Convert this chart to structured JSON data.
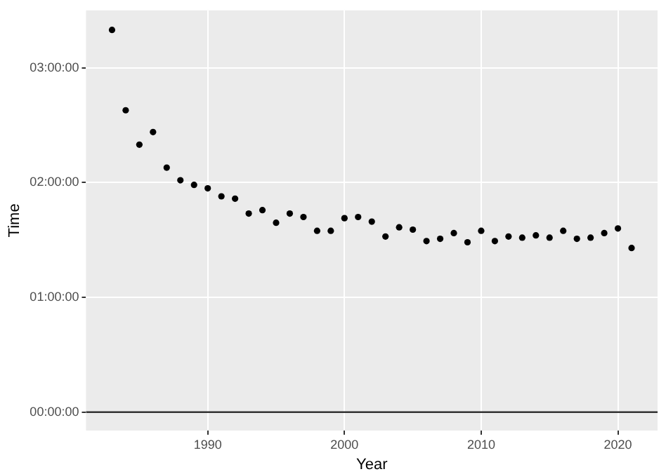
{
  "chart_data": {
    "type": "scatter",
    "xlabel": "Year",
    "ylabel": "Time",
    "x": [
      1983,
      1984,
      1985,
      1986,
      1987,
      1988,
      1989,
      1990,
      1991,
      1992,
      1993,
      1994,
      1995,
      1996,
      1997,
      1998,
      1999,
      2000,
      2001,
      2002,
      2003,
      2004,
      2005,
      2006,
      2007,
      2008,
      2009,
      2010,
      2011,
      2012,
      2013,
      2014,
      2015,
      2016,
      2017,
      2018,
      2019,
      2020,
      2021
    ],
    "values": [
      3.33,
      2.63,
      2.33,
      2.44,
      2.13,
      2.02,
      1.98,
      1.95,
      1.88,
      1.86,
      1.73,
      1.76,
      1.65,
      1.73,
      1.7,
      1.58,
      1.58,
      1.69,
      1.7,
      1.66,
      1.53,
      1.61,
      1.59,
      1.49,
      1.51,
      1.56,
      1.48,
      1.58,
      1.49,
      1.53,
      1.52,
      1.54,
      1.52,
      1.58,
      1.51,
      1.52,
      1.56,
      1.6,
      1.43
    ],
    "color": "#000000",
    "marker": "circle",
    "xlim": [
      1981.1,
      2022.9
    ],
    "xticks": [
      1990,
      2000,
      2010,
      2020
    ],
    "ylim": [
      -0.16,
      3.5
    ],
    "yticks": [
      {
        "value": 0,
        "label": "00:00:00"
      },
      {
        "value": 1,
        "label": "01:00:00"
      },
      {
        "value": 2,
        "label": "02:00:00"
      },
      {
        "value": 3,
        "label": "03:00:00"
      }
    ],
    "ref_lines": [
      {
        "axis": "y",
        "value": 0,
        "color": "#333333"
      }
    ],
    "grid": true
  }
}
